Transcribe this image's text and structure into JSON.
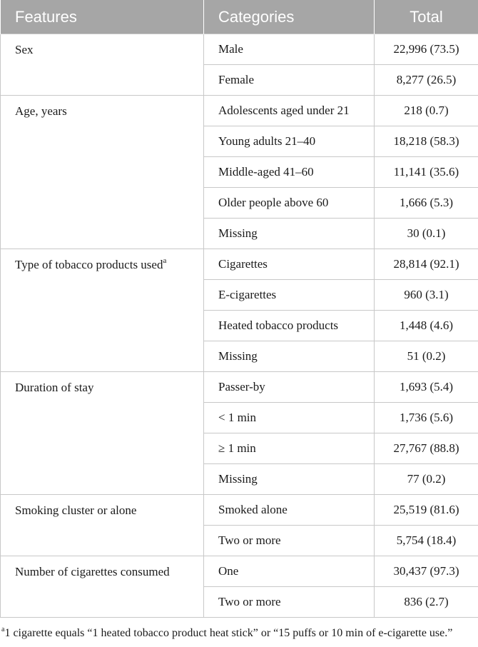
{
  "header": {
    "features": "Features",
    "categories": "Categories",
    "total": "Total"
  },
  "groups": [
    {
      "feature": "Sex",
      "rows": [
        {
          "category": "Male",
          "total": "22,996 (73.5)"
        },
        {
          "category": "Female",
          "total": "8,277 (26.5)"
        }
      ]
    },
    {
      "feature": "Age, years",
      "rows": [
        {
          "category": "Adolescents aged under 21",
          "total": "218 (0.7)"
        },
        {
          "category": "Young adults 21–40",
          "total": "18,218 (58.3)"
        },
        {
          "category": "Middle-aged 41–60",
          "total": "11,141 (35.6)"
        },
        {
          "category": "Older people above 60",
          "total": "1,666 (5.3)"
        },
        {
          "category": "Missing",
          "total": "30 (0.1)"
        }
      ]
    },
    {
      "feature": "Type of tobacco products used",
      "feature_sup": "a",
      "rows": [
        {
          "category": "Cigarettes",
          "total": "28,814 (92.1)"
        },
        {
          "category": "E-cigarettes",
          "total": "960 (3.1)"
        },
        {
          "category": "Heated tobacco products",
          "total": "1,448 (4.6)"
        },
        {
          "category": "Missing",
          "total": "51 (0.2)"
        }
      ]
    },
    {
      "feature": "Duration of stay",
      "rows": [
        {
          "category": "Passer-by",
          "total": "1,693 (5.4)"
        },
        {
          "category": "< 1 min",
          "total": "1,736 (5.6)"
        },
        {
          "category": "≥ 1 min",
          "total": "27,767 (88.8)"
        },
        {
          "category": "Missing",
          "total": "77 (0.2)"
        }
      ]
    },
    {
      "feature": "Smoking cluster or alone",
      "rows": [
        {
          "category": "Smoked alone",
          "total": "25,519 (81.6)"
        },
        {
          "category": "Two or more",
          "total": "5,754 (18.4)"
        }
      ]
    },
    {
      "feature": "Number of cigarettes consumed",
      "rows": [
        {
          "category": "One",
          "total": "30,437 (97.3)"
        },
        {
          "category": "Two or more",
          "total": "836 (2.7)"
        }
      ]
    }
  ],
  "footnote": {
    "mark": "a",
    "text": "1 cigarette equals “1 heated tobacco product heat stick” or “15 puffs or 10 min of e-cigarette use.”"
  }
}
